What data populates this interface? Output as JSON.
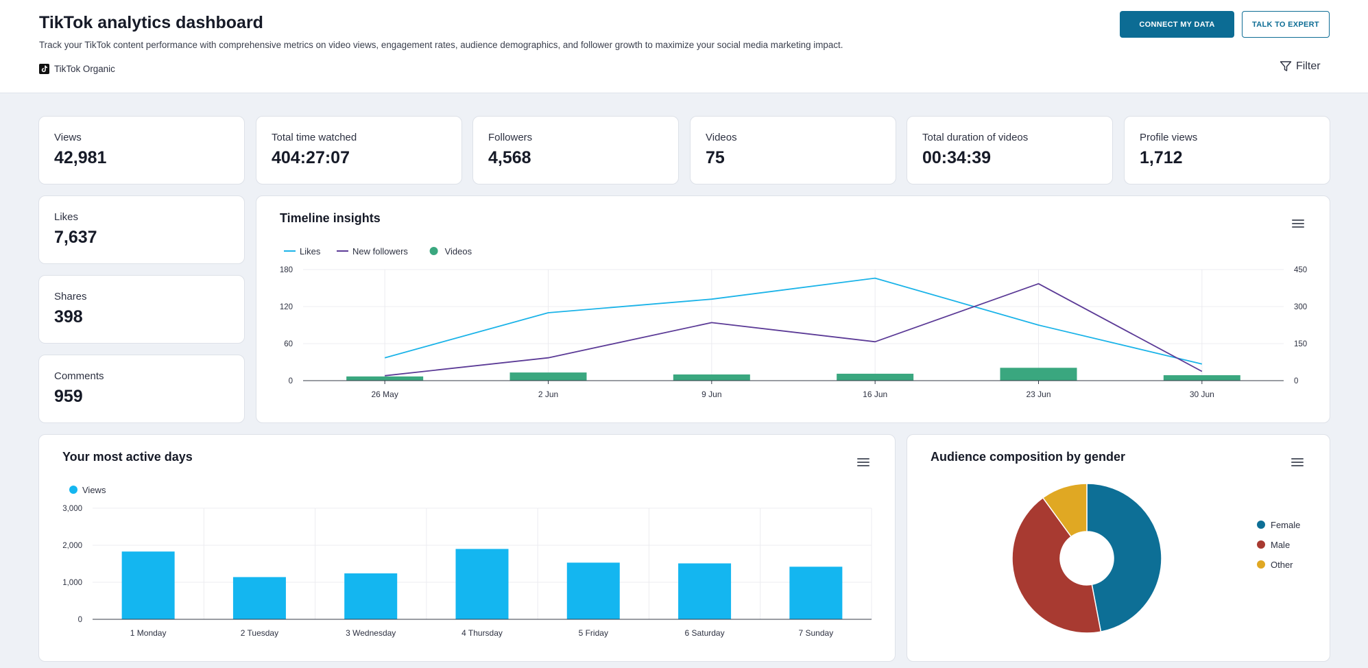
{
  "header": {
    "title": "TikTok analytics dashboard",
    "subtitle": "Track your TikTok content performance with comprehensive metrics on video views, engagement rates, audience demographics, and follower growth to maximize your social media marketing impact.",
    "source": "TikTok Organic",
    "connect_label": "CONNECT MY DATA",
    "expert_label": "TALK TO EXPERT",
    "filter_label": "Filter"
  },
  "kpis": [
    {
      "label": "Views",
      "value": "42,981"
    },
    {
      "label": "Total time watched",
      "value": "404:27:07"
    },
    {
      "label": "Followers",
      "value": "4,568"
    },
    {
      "label": "Videos",
      "value": "75"
    },
    {
      "label": "Total duration of videos",
      "value": "00:34:39"
    },
    {
      "label": "Profile views",
      "value": "1,712"
    },
    {
      "label": "Likes",
      "value": "7,637"
    },
    {
      "label": "Shares",
      "value": "398"
    },
    {
      "label": "Comments",
      "value": "959"
    }
  ],
  "colors": {
    "likes": "#1ab3e8",
    "followers": "#5b3a96",
    "videos": "#3aa77f",
    "views": "#14b6f0",
    "female": "#0d6f96",
    "male": "#a83a31",
    "other": "#e0a823"
  },
  "chart_data": [
    {
      "type": "line",
      "title": "Timeline insights",
      "categories": [
        "26 May",
        "2 Jun",
        "9 Jun",
        "16 Jun",
        "23 Jun",
        "30 Jun"
      ],
      "series": [
        {
          "name": "Likes",
          "type": "line",
          "axis": "left",
          "values": [
            37,
            110,
            132,
            166,
            90,
            27
          ]
        },
        {
          "name": "New followers",
          "type": "line",
          "axis": "left",
          "values": [
            8,
            37,
            94,
            63,
            157,
            15
          ]
        },
        {
          "name": "Videos",
          "type": "bar",
          "axis": "right",
          "values": [
            17,
            33,
            25,
            28,
            52,
            22
          ]
        }
      ],
      "y_left": {
        "ticks": [
          0,
          60,
          120,
          180
        ],
        "range": [
          0,
          180
        ]
      },
      "y_right": {
        "ticks": [
          0,
          150,
          300,
          450
        ],
        "range": [
          0,
          450
        ]
      },
      "legend": "top-left"
    },
    {
      "type": "bar",
      "title": "Your most active days",
      "categories": [
        "1 Monday",
        "2 Tuesday",
        "3 Wednesday",
        "4 Thursday",
        "5 Friday",
        "6 Saturday",
        "7 Sunday"
      ],
      "series": [
        {
          "name": "Views",
          "values": [
            1830,
            1140,
            1240,
            1900,
            1530,
            1510,
            1420
          ]
        }
      ],
      "y_ticks": [
        "0",
        "1,000",
        "2,000",
        "3,000"
      ],
      "ylim": [
        0,
        3000
      ],
      "legend": "top-left"
    },
    {
      "type": "pie",
      "title": "Audience composition by gender",
      "labels": [
        "Female",
        "Male",
        "Other"
      ],
      "values": [
        47,
        43,
        10
      ],
      "donut": true,
      "legend": "right"
    }
  ]
}
